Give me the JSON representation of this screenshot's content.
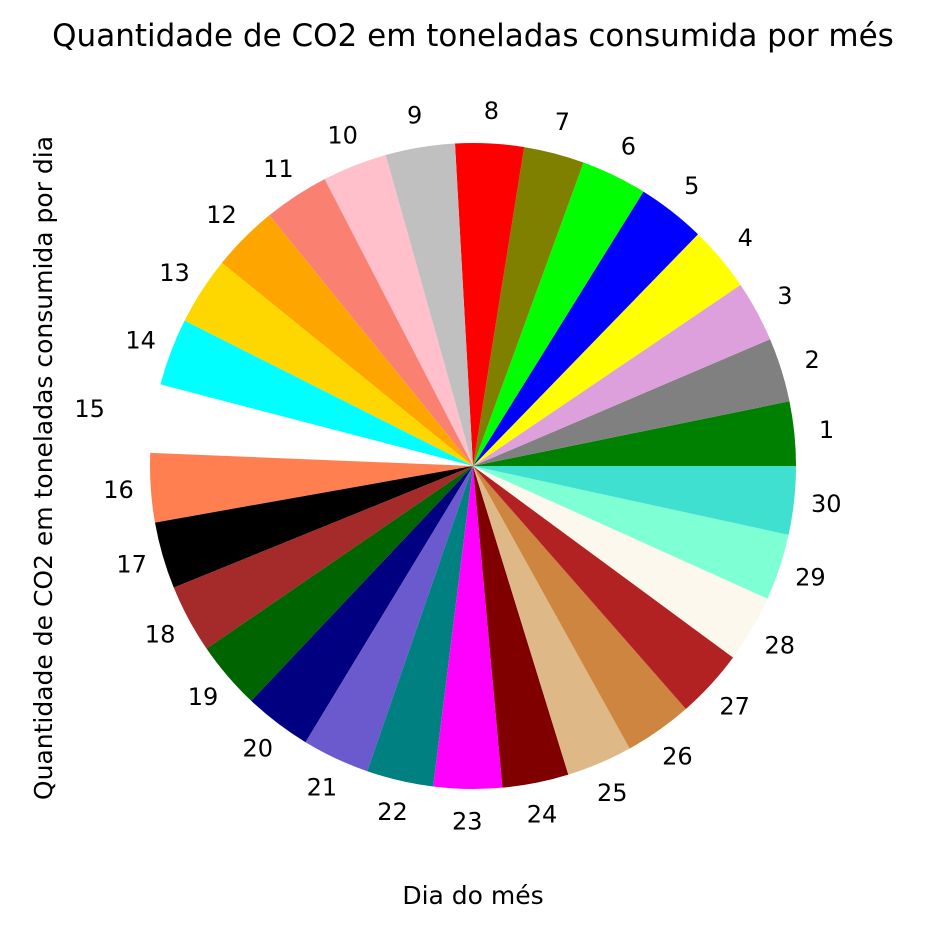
{
  "chart_data": {
    "type": "pie",
    "title": "Quantidade de CO2 em toneladas consumida por més",
    "xlabel": "Dia do més",
    "ylabel": "Quantidade de CO2 em toneladas consumida por dia",
    "categories": [
      "1",
      "2",
      "3",
      "4",
      "5",
      "6",
      "7",
      "8",
      "9",
      "10",
      "11",
      "12",
      "13",
      "14",
      "15",
      "16",
      "17",
      "18",
      "19",
      "20",
      "21",
      "22",
      "23",
      "24",
      "25",
      "26",
      "27",
      "28",
      "29",
      "30"
    ],
    "values": [
      12.2,
      12.2,
      11.6,
      12.4,
      13.0,
      12.5,
      11.5,
      13.0,
      13.2,
      12.3,
      12.4,
      12.6,
      12.9,
      12.8,
      13.0,
      13.1,
      12.7,
      13.0,
      12.9,
      12.8,
      12.8,
      12.7,
      13.0,
      12.6,
      12.5,
      12.9,
      13.1,
      12.8,
      12.6,
      13.0
    ],
    "colors": [
      "#008000",
      "#808080",
      "#dda0dd",
      "#ffff00",
      "#0000ff",
      "#00ff00",
      "#808000",
      "#ff0000",
      "#c0c0c0",
      "#ffc0cb",
      "#fa8072",
      "#ffa500",
      "#ffd700",
      "#00ffff",
      "#ffffff",
      "#ff7f50",
      "#000000",
      "#a52a2a",
      "#006400",
      "#000080",
      "#6a5acd",
      "#008080",
      "#ff00ff",
      "#800000",
      "#deb887",
      "#cd853f",
      "#b22222",
      "#fdf8ee",
      "#7fffd4",
      "#40e0d0"
    ],
    "explode": {
      "15": 0.1
    },
    "start_angle": 0,
    "direction": "counterclockwise"
  }
}
